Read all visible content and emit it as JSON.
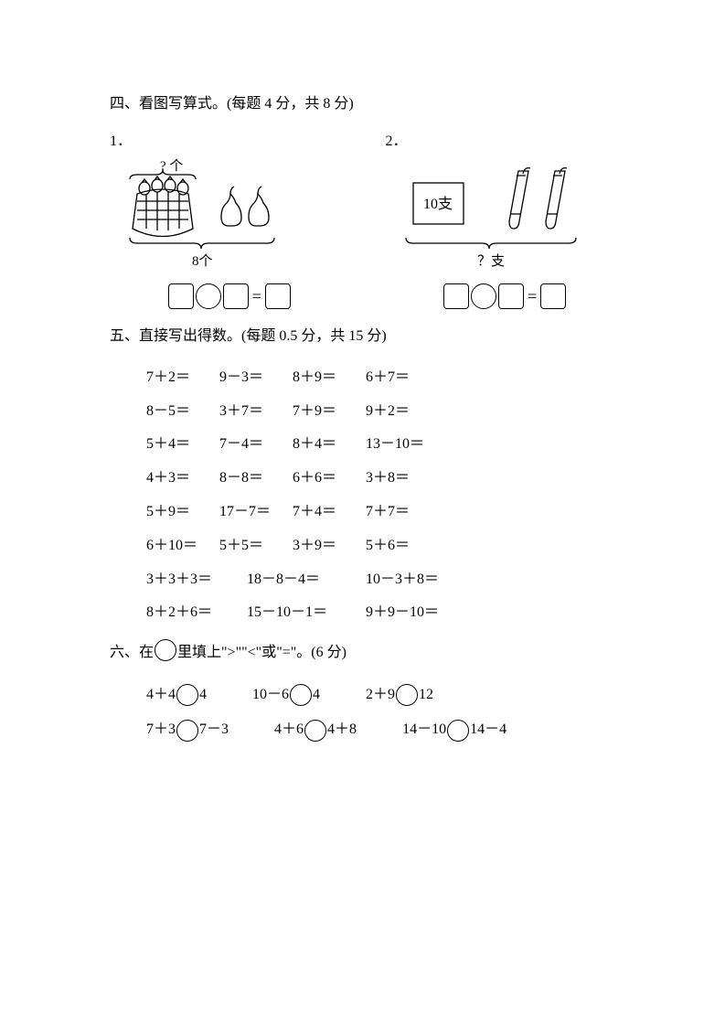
{
  "section4": {
    "heading": "四、看图写算式。(每题 4 分，共 8 分)",
    "q1": {
      "num": "1．",
      "top_label": "? 个",
      "bottom_label": "8个",
      "box_label": "",
      "eq_sign": "="
    },
    "q2": {
      "num": "2．",
      "box_label": "10支",
      "bottom_label": "？支",
      "eq_sign": "="
    }
  },
  "section5": {
    "heading": "五、直接写出得数。(每题 0.5 分，共 15 分)",
    "rows": [
      [
        "7＋2＝",
        "9－3＝",
        "8＋9＝",
        "6＋7＝"
      ],
      [
        "8－5＝",
        "3＋7＝",
        "7＋9＝",
        "9＋2＝"
      ],
      [
        "5＋4＝",
        "7－4＝",
        "8＋4＝",
        "13－10＝"
      ],
      [
        "4＋3＝",
        "8－8＝",
        "6＋6＝",
        "3＋8＝"
      ],
      [
        "5＋9＝",
        "17－7＝",
        "7＋4＝",
        "7＋7＝"
      ],
      [
        "6＋10＝",
        "5＋5＝",
        "3＋9＝",
        "5＋6＝"
      ],
      [
        "3＋3＋3＝",
        "18－8－4＝",
        "10－3＋8＝"
      ],
      [
        "8＋2＋6＝",
        "15－10－1＝",
        "9＋9－10＝"
      ]
    ],
    "col_widths_4": [
      80,
      80,
      80,
      90
    ],
    "col_widths_3": [
      110,
      130,
      120
    ]
  },
  "section6": {
    "heading_parts": [
      "六、在",
      "里填上\">\"\"<\"或\"=\"。(6 分)"
    ],
    "rows": [
      [
        {
          "l": "4＋4",
          "r": "4"
        },
        {
          "l": "10－6",
          "r": "4"
        },
        {
          "l": "2＋9",
          "r": "12"
        }
      ],
      [
        {
          "l": "7＋3",
          "r": "7－3"
        },
        {
          "l": "4＋6",
          "r": "4＋8"
        },
        {
          "l": "14－10",
          "r": "14－4"
        }
      ]
    ]
  }
}
